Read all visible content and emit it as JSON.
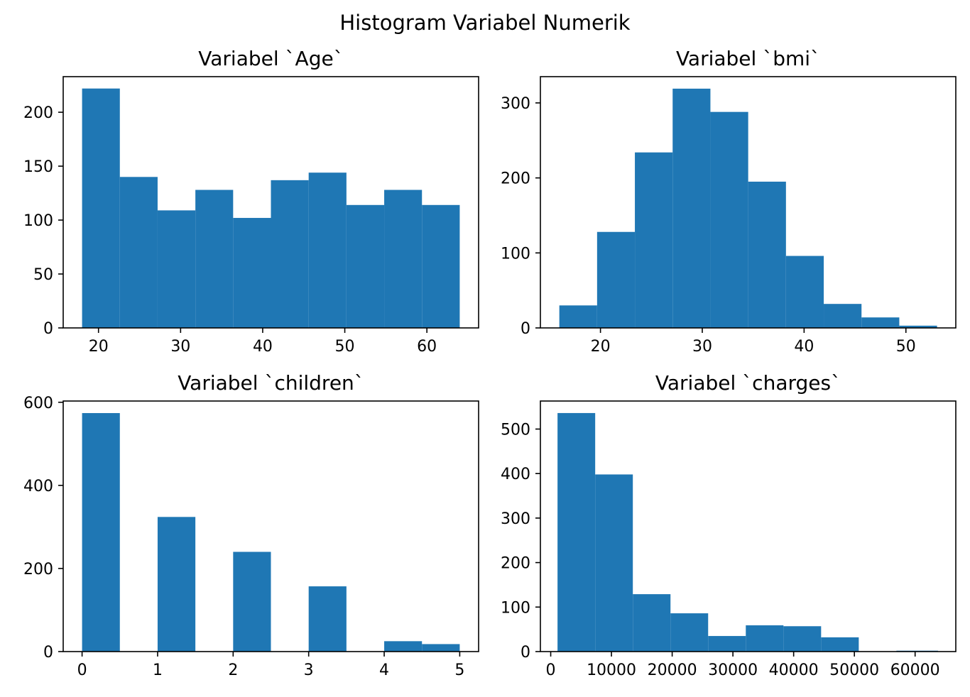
{
  "figure": {
    "suptitle": "Histogram Variabel Numerik",
    "bar_color": "#1f77b4"
  },
  "chart_data": [
    {
      "type": "bar",
      "title": "Variabel `Age`",
      "xlabel": "",
      "ylabel": "",
      "bin_edges": [
        18,
        22.6,
        27.2,
        31.8,
        36.4,
        41,
        45.6,
        50.2,
        54.8,
        59.4,
        64
      ],
      "values": [
        222,
        140,
        109,
        128,
        102,
        137,
        144,
        114,
        128,
        114
      ],
      "xlim": [
        15.7,
        66.3
      ],
      "ylim": [
        0,
        233
      ],
      "xticks": [
        20,
        30,
        40,
        50,
        60
      ],
      "xtick_labels": [
        "20",
        "30",
        "40",
        "50",
        "60"
      ],
      "yticks": [
        0,
        50,
        100,
        150,
        200
      ],
      "ytick_labels": [
        "0",
        "50",
        "100",
        "150",
        "200"
      ],
      "grid": false
    },
    {
      "type": "bar",
      "title": "Variabel `bmi`",
      "xlabel": "",
      "ylabel": "",
      "bin_edges": [
        15.96,
        19.67,
        23.38,
        27.09,
        30.8,
        34.51,
        38.22,
        41.93,
        45.64,
        49.35,
        53.06
      ],
      "values": [
        30,
        128,
        234,
        319,
        288,
        195,
        96,
        32,
        14,
        3
      ],
      "xlim": [
        14.1,
        54.9
      ],
      "ylim": [
        0,
        335
      ],
      "xticks": [
        20,
        30,
        40,
        50
      ],
      "xtick_labels": [
        "20",
        "30",
        "40",
        "50"
      ],
      "yticks": [
        0,
        100,
        200,
        300
      ],
      "ytick_labels": [
        "0",
        "100",
        "200",
        "300"
      ],
      "grid": false
    },
    {
      "type": "bar",
      "title": "Variabel `children`",
      "xlabel": "",
      "ylabel": "",
      "bin_edges": [
        0,
        0.5,
        1,
        1.5,
        2,
        2.5,
        3,
        3.5,
        4,
        4.5,
        5
      ],
      "values": [
        574,
        0,
        324,
        0,
        240,
        0,
        157,
        0,
        25,
        18
      ],
      "xlim": [
        -0.25,
        5.25
      ],
      "ylim": [
        0,
        603
      ],
      "xticks": [
        0,
        1,
        2,
        3,
        4,
        5
      ],
      "xtick_labels": [
        "0",
        "1",
        "2",
        "3",
        "4",
        "5"
      ],
      "yticks": [
        0,
        200,
        400,
        600
      ],
      "ytick_labels": [
        "0",
        "200",
        "400",
        "600"
      ],
      "grid": false
    },
    {
      "type": "bar",
      "title": "Variabel `charges`",
      "xlabel": "",
      "ylabel": "",
      "bin_edges": [
        1122,
        7322,
        13522,
        19722,
        25922,
        32122,
        38322,
        44522,
        50722,
        56922,
        63770
      ],
      "values": [
        536,
        398,
        129,
        86,
        35,
        59,
        57,
        32,
        0,
        2
      ],
      "xlim": [
        -1700,
        66700
      ],
      "ylim": [
        0,
        563
      ],
      "xticks": [
        0,
        10000,
        20000,
        30000,
        40000,
        50000,
        60000
      ],
      "xtick_labels": [
        "0",
        "10000",
        "20000",
        "30000",
        "40000",
        "50000",
        "60000"
      ],
      "yticks": [
        0,
        100,
        200,
        300,
        400,
        500
      ],
      "ytick_labels": [
        "0",
        "100",
        "200",
        "300",
        "400",
        "500"
      ],
      "grid": false
    }
  ]
}
